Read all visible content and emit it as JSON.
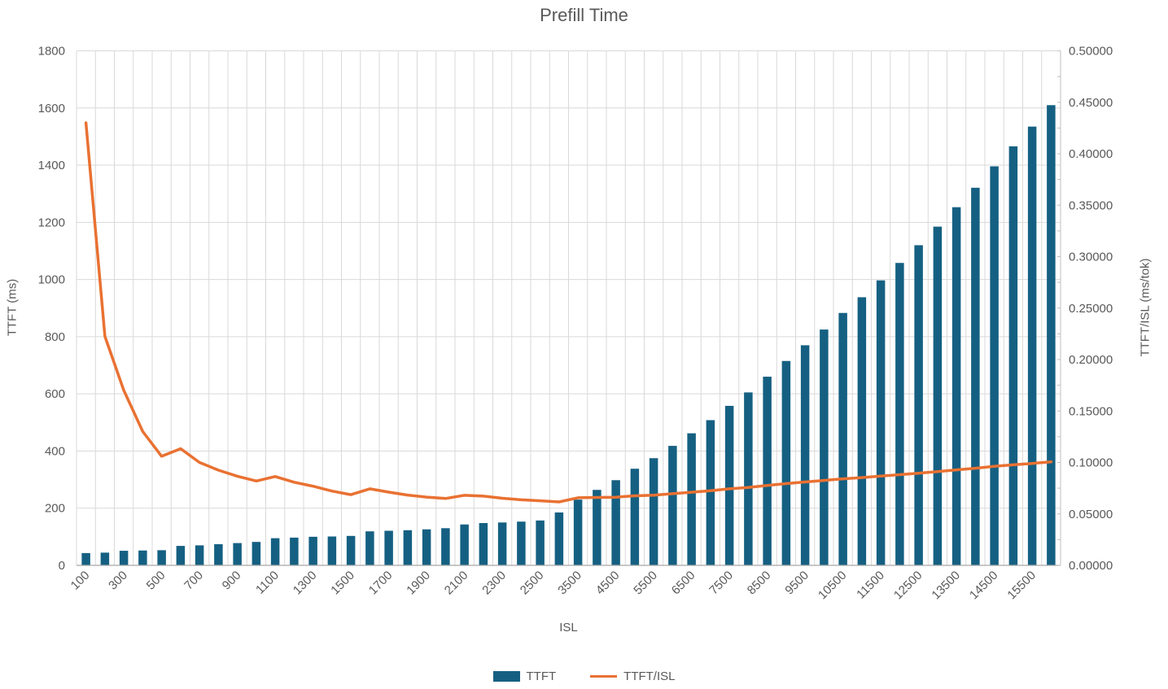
{
  "chart": {
    "title": "Prefill Time",
    "x_axis_title": "ISL",
    "y_left_axis_title": "TTFT (ms)",
    "y_right_axis_title": "TTFT/ISL (ms/tok)",
    "legend": {
      "ttft_label": "TTFT",
      "ratio_label": "TTFT/ISL"
    },
    "colors": {
      "bar": "#156082",
      "line": "#E97132",
      "gridline": "#D9D9D9",
      "axis_line": "#BFBFBF",
      "baseline": "#A6A6A6",
      "text": "#595959"
    }
  },
  "chart_data": {
    "type": "bar",
    "subtype": "combo-bar-line-dual-axis",
    "title": "Prefill Time",
    "xlabel": "ISL",
    "ylabel_left": "TTFT (ms)",
    "ylabel_right": "TTFT/ISL (ms/tok)",
    "legend_position": "bottom",
    "grid": true,
    "categories": [
      100,
      200,
      300,
      400,
      500,
      600,
      700,
      800,
      900,
      1000,
      1100,
      1200,
      1300,
      1400,
      1500,
      1600,
      1700,
      1800,
      1900,
      2000,
      2100,
      2200,
      2300,
      2400,
      2500,
      3000,
      3500,
      4000,
      4500,
      5000,
      5500,
      6000,
      6500,
      7000,
      7500,
      8000,
      8500,
      9000,
      9500,
      10000,
      10500,
      11000,
      11500,
      12000,
      12500,
      13000,
      13500,
      14000,
      14500,
      15000,
      15500,
      16000
    ],
    "series": [
      {
        "name": "TTFT",
        "type": "bar",
        "axis": "left",
        "values": [
          43,
          44.5,
          51,
          52,
          53,
          68,
          70,
          74,
          78,
          82,
          95,
          97,
          100,
          101,
          103,
          119,
          121,
          123,
          126,
          130,
          143,
          148,
          150,
          153,
          157,
          185,
          230,
          264,
          298,
          338,
          375,
          418,
          462,
          508,
          558,
          605,
          660,
          715,
          770,
          825,
          883,
          938,
          997,
          1058,
          1120,
          1185,
          1253,
          1321,
          1396,
          1466,
          1535,
          1610
        ]
      },
      {
        "name": "TTFT/ISL",
        "type": "line",
        "axis": "right",
        "values": [
          0.43,
          0.2225,
          0.17,
          0.13,
          0.106,
          0.11333,
          0.1,
          0.0925,
          0.08667,
          0.082,
          0.08636,
          0.08083,
          0.07692,
          0.07214,
          0.06867,
          0.07438,
          0.07118,
          0.06833,
          0.06632,
          0.065,
          0.0681,
          0.06727,
          0.06522,
          0.06375,
          0.0628,
          0.06167,
          0.06571,
          0.066,
          0.06622,
          0.0676,
          0.06818,
          0.06967,
          0.07108,
          0.07257,
          0.0744,
          0.07563,
          0.07765,
          0.07944,
          0.08105,
          0.0825,
          0.0841,
          0.08527,
          0.0867,
          0.08817,
          0.0896,
          0.09115,
          0.09281,
          0.09436,
          0.09628,
          0.09773,
          0.09903,
          0.10063
        ]
      }
    ],
    "x_tick_labels": [
      "100",
      "300",
      "500",
      "700",
      "900",
      "1100",
      "1300",
      "1500",
      "1700",
      "1900",
      "2100",
      "2300",
      "2500",
      "3500",
      "4500",
      "5500",
      "6500",
      "7500",
      "8500",
      "9500",
      "10500",
      "11500",
      "12500",
      "13500",
      "14500",
      "15500"
    ],
    "y_left_axis": {
      "min": 0,
      "max": 1800,
      "step": 200,
      "tick_labels": [
        "0",
        "200",
        "400",
        "600",
        "800",
        "1000",
        "1200",
        "1400",
        "1600",
        "1800"
      ]
    },
    "y_right_axis": {
      "min": 0,
      "max": 0.5,
      "step": 0.05,
      "minor_tick_step": 0.025,
      "tick_labels": [
        "0.00000",
        "0.05000",
        "0.10000",
        "0.15000",
        "0.20000",
        "0.25000",
        "0.30000",
        "0.35000",
        "0.40000",
        "0.45000",
        "0.50000"
      ]
    }
  }
}
